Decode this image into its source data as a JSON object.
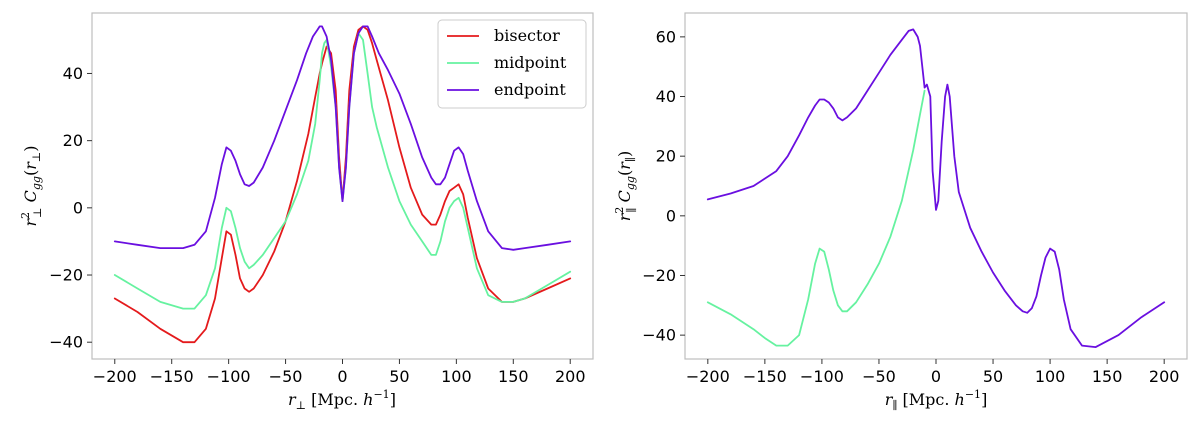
{
  "chart_data": [
    {
      "type": "line",
      "xlabel": "r_⊥ [Mpc. h^-1]",
      "ylabel": "r_⊥^2 C_gg(r_⊥)",
      "xlim": [
        -220,
        220
      ],
      "ylim": [
        -45,
        58
      ],
      "xticks": [
        -200,
        -150,
        -100,
        -50,
        0,
        50,
        100,
        150,
        200
      ],
      "yticks": [
        -40,
        -20,
        0,
        20,
        40
      ],
      "grid": false,
      "legend": "top-right",
      "series": [
        {
          "name": "bisector",
          "color": "#e41a1c",
          "x": [
            -200,
            -180,
            -160,
            -140,
            -130,
            -120,
            -112,
            -106,
            -102,
            -98,
            -94,
            -90,
            -86,
            -82,
            -78,
            -70,
            -60,
            -50,
            -40,
            -30,
            -24,
            -20,
            -18,
            -14,
            -10,
            -6,
            -3,
            0,
            3,
            6,
            10,
            14,
            18,
            22,
            26,
            30,
            40,
            50,
            60,
            70,
            78,
            82,
            86,
            90,
            94,
            98,
            102,
            106,
            110,
            118,
            128,
            140,
            150,
            160,
            180,
            200
          ],
          "y": [
            -27,
            -31,
            -36,
            -40,
            -40,
            -36,
            -27,
            -15,
            -7,
            -8,
            -14,
            -21,
            -24,
            -25,
            -24,
            -20,
            -13,
            -4,
            8,
            22,
            33,
            40,
            43,
            48,
            46,
            35,
            15,
            2,
            15,
            35,
            48,
            53,
            54,
            53,
            49,
            44,
            32,
            18,
            6,
            -2,
            -5,
            -5,
            -2,
            2,
            5,
            6,
            7,
            4,
            -3,
            -15,
            -24,
            -28,
            -28,
            -27,
            -24,
            -21
          ]
        },
        {
          "name": "midpoint",
          "color": "#66f2a0",
          "x": [
            -200,
            -180,
            -160,
            -140,
            -130,
            -120,
            -112,
            -106,
            -102,
            -98,
            -94,
            -90,
            -86,
            -82,
            -78,
            -70,
            -60,
            -50,
            -40,
            -30,
            -24,
            -20,
            -18,
            -16,
            -14,
            -10,
            -6,
            -3,
            0,
            3,
            6,
            10,
            14,
            18,
            22,
            26,
            30,
            40,
            50,
            60,
            70,
            78,
            82,
            86,
            90,
            94,
            98,
            102,
            106,
            110,
            118,
            128,
            140,
            150,
            160,
            180,
            200
          ],
          "y": [
            -20,
            -24,
            -28,
            -30,
            -30,
            -26,
            -18,
            -6,
            0,
            -1,
            -6,
            -12,
            -16,
            -18,
            -17,
            -14,
            -9,
            -4,
            4,
            14,
            25,
            38,
            46,
            49,
            50,
            42,
            30,
            12,
            2,
            12,
            30,
            46,
            52,
            50,
            40,
            30,
            24,
            12,
            2,
            -5,
            -10,
            -14,
            -14,
            -10,
            -4,
            0,
            2,
            3,
            0,
            -6,
            -18,
            -26,
            -28,
            -28,
            -27,
            -23,
            -19
          ]
        },
        {
          "name": "endpoint",
          "color": "#6a0fe0",
          "x": [
            -200,
            -180,
            -160,
            -150,
            -140,
            -130,
            -120,
            -112,
            -106,
            -102,
            -98,
            -94,
            -90,
            -86,
            -82,
            -78,
            -70,
            -60,
            -50,
            -40,
            -32,
            -26,
            -22,
            -20,
            -18,
            -14,
            -10,
            -6,
            -3,
            0,
            3,
            6,
            10,
            14,
            18,
            22,
            26,
            32,
            40,
            50,
            60,
            70,
            78,
            82,
            86,
            90,
            94,
            98,
            102,
            106,
            110,
            118,
            128,
            140,
            150,
            160,
            180,
            200
          ],
          "y": [
            -10,
            -11,
            -12,
            -12,
            -12,
            -11,
            -7,
            3,
            13,
            18,
            17,
            14,
            10,
            7,
            6.5,
            7.5,
            12,
            20,
            29,
            38,
            46,
            51,
            53,
            54,
            54,
            51,
            44,
            30,
            12,
            2,
            12,
            30,
            46,
            52,
            54,
            54,
            51,
            46,
            41,
            34,
            25,
            15,
            9,
            7,
            7,
            9,
            13,
            17,
            18,
            16,
            11,
            2,
            -7,
            -12,
            -12.5,
            -12,
            -11,
            -10
          ]
        }
      ]
    },
    {
      "type": "line",
      "xlabel": "r_∥ [Mpc. h^-1]",
      "ylabel": "r_∥^2 C_gg(r_∥)",
      "xlim": [
        -220,
        220
      ],
      "ylim": [
        -48,
        68
      ],
      "xticks": [
        -200,
        -150,
        -100,
        -50,
        0,
        50,
        100,
        150,
        200
      ],
      "yticks": [
        -40,
        -20,
        0,
        20,
        40,
        60
      ],
      "grid": false,
      "series": [
        {
          "name": "midpoint",
          "color": "#66f2a0",
          "x": [
            -200,
            -180,
            -160,
            -150,
            -140,
            -130,
            -120,
            -112,
            -106,
            -102,
            -98,
            -94,
            -90,
            -86,
            -82,
            -78,
            -70,
            -60,
            -50,
            -40,
            -30,
            -20,
            -14,
            -10
          ],
          "y": [
            -29,
            -33,
            -38,
            -41,
            -43.5,
            -43.5,
            -40,
            -28,
            -16,
            -11,
            -12,
            -18,
            -25,
            -30,
            -32,
            -32,
            -29,
            -23,
            -16,
            -7,
            5,
            22,
            34,
            42
          ]
        },
        {
          "name": "endpoint",
          "color": "#6a0fe0",
          "x": [
            -200,
            -180,
            -160,
            -140,
            -130,
            -120,
            -112,
            -106,
            -102,
            -98,
            -94,
            -90,
            -86,
            -82,
            -78,
            -70,
            -60,
            -50,
            -40,
            -30,
            -24,
            -20,
            -16,
            -14,
            -12,
            -10,
            -8,
            -5,
            -3,
            0,
            2,
            5,
            8,
            10,
            12,
            14,
            16,
            20,
            30,
            40,
            50,
            60,
            70,
            76,
            80,
            84,
            88,
            92,
            96,
            100,
            104,
            108,
            112,
            118,
            128,
            140,
            150,
            160,
            180,
            200
          ],
          "y": [
            5.5,
            7.5,
            10,
            15,
            20,
            27,
            33,
            37,
            39,
            39,
            38,
            36,
            33,
            32,
            33,
            36,
            42,
            48,
            54,
            59,
            62,
            62.5,
            60,
            57,
            50,
            43,
            44,
            40,
            15,
            2,
            5,
            25,
            40,
            44,
            40,
            30,
            20,
            8,
            -4,
            -12,
            -19,
            -25,
            -30,
            -32,
            -32.5,
            -31,
            -27,
            -20,
            -14,
            -11,
            -12,
            -18,
            -28,
            -38,
            -43.5,
            -44,
            -42,
            -40,
            -34,
            -29
          ]
        }
      ]
    }
  ]
}
